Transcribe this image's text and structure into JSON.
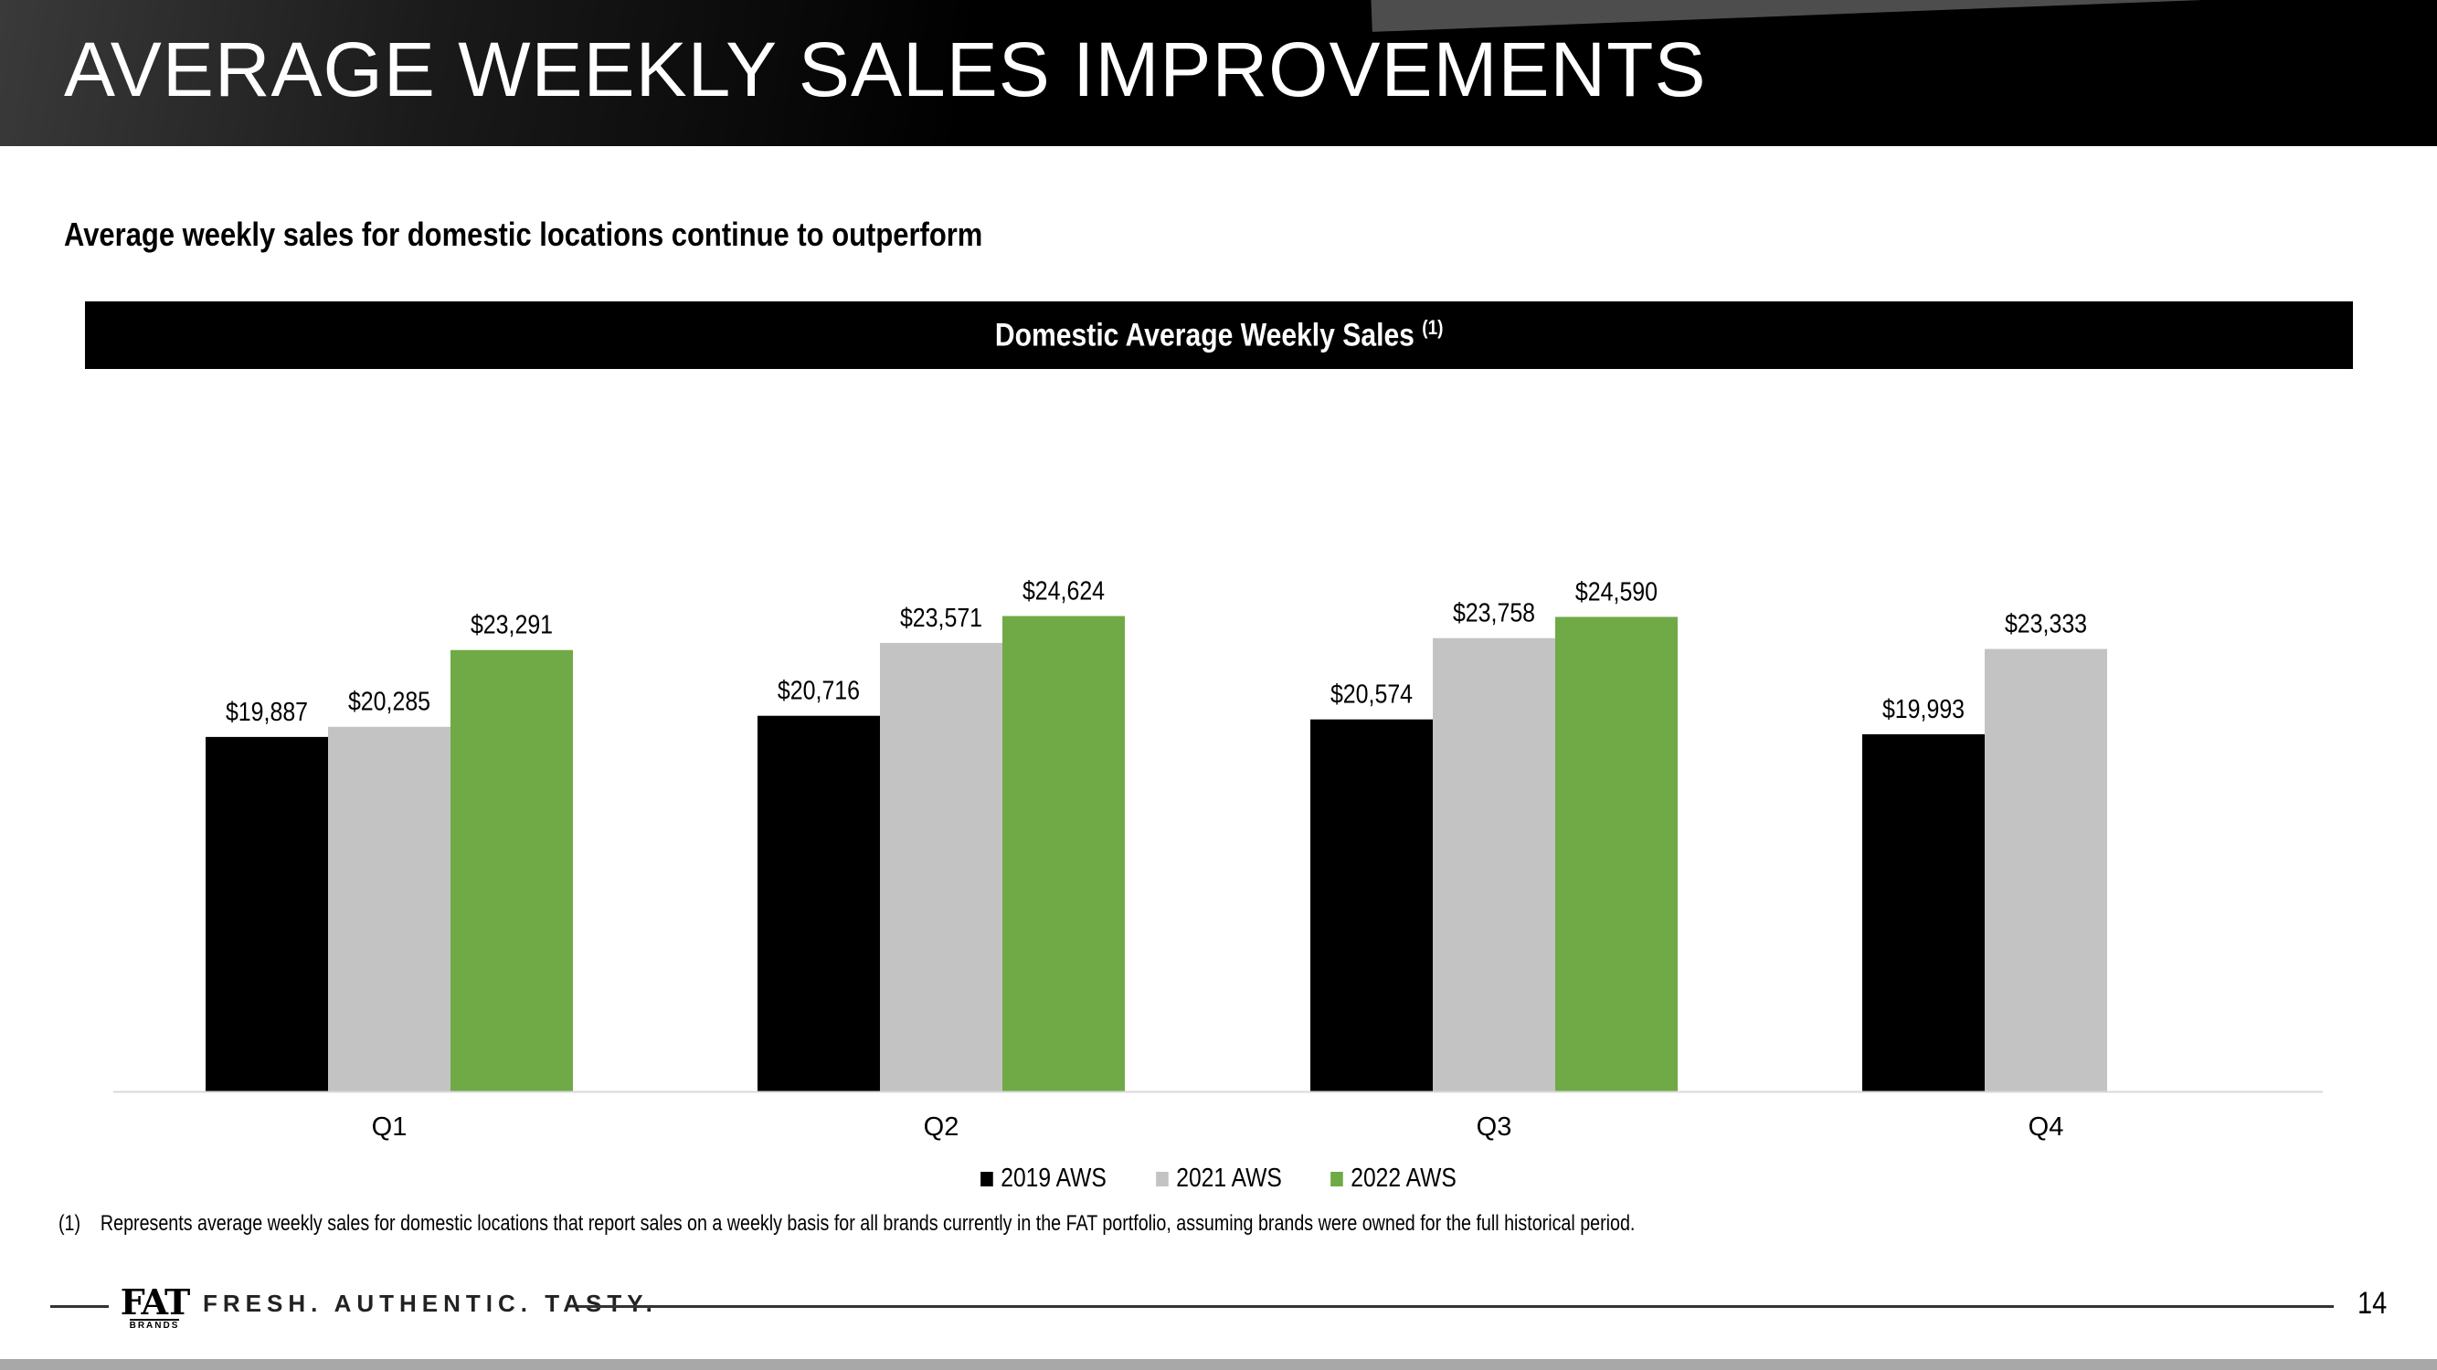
{
  "slide": {
    "title": "AVERAGE WEEKLY SALES IMPROVEMENTS",
    "subtitle": "Average weekly sales for domestic locations continue to outperform",
    "chart_header": "Domestic Average Weekly Sales",
    "chart_header_note": "(1)",
    "footnote_number": "(1)",
    "footnote_text": "Represents average weekly sales for domestic locations that report sales on a weekly basis for all brands currently in the FAT portfolio, assuming brands were owned for the full historical period.",
    "logo_text": "FAT",
    "logo_subtext": "BRANDS",
    "tagline": "FRESH. AUTHENTIC. TASTY.",
    "page_number": "14"
  },
  "chart_data": {
    "type": "bar",
    "title": "Domestic Average Weekly Sales (1)",
    "categories": [
      "Q1",
      "Q2",
      "Q3",
      "Q4"
    ],
    "series": [
      {
        "name": "2019 AWS",
        "color": "#000000",
        "values": [
          19887,
          20716,
          20574,
          19993
        ],
        "labels": [
          "$19,887",
          "$20,716",
          "$20,574",
          "$19,993"
        ]
      },
      {
        "name": "2021 AWS",
        "color": "#c3c3c3",
        "values": [
          20285,
          23571,
          23758,
          23333
        ],
        "labels": [
          "$20,285",
          "$23,571",
          "$23,758",
          "$23,333"
        ]
      },
      {
        "name": "2022 AWS",
        "color": "#6faa46",
        "values": [
          23291,
          24624,
          24590,
          null
        ],
        "labels": [
          "$23,291",
          "$24,624",
          "$24,590",
          null
        ]
      }
    ],
    "ylim": [
      6000,
      25500
    ],
    "legend_position": "bottom",
    "grid": false
  }
}
